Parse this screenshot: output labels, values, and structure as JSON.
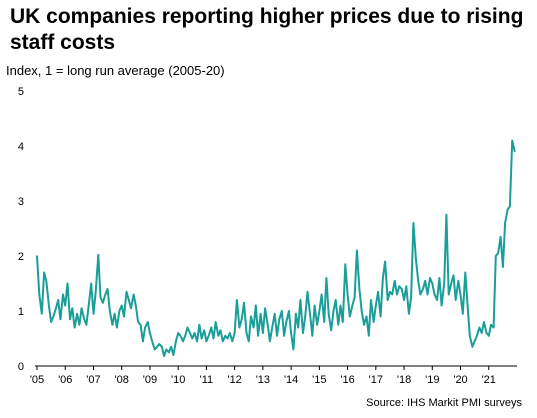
{
  "title": "UK companies reporting higher prices due to rising staff costs",
  "subtitle": "Index, 1 = long run average (2005-20)",
  "source": "Source: IHS Markit PMI surveys",
  "colors": {
    "line": "#1a9e9a",
    "axis": "#000000",
    "text": "#000000"
  },
  "chart_data": {
    "type": "line",
    "title": "UK companies reporting higher prices due to rising staff costs",
    "ylabel": "Index, 1 = long run average (2005-20)",
    "xlabel": "",
    "ylim": [
      0,
      5
    ],
    "yticks": [
      "0",
      "1",
      "2",
      "3",
      "4",
      "5"
    ],
    "xlim": [
      2005,
      2022
    ],
    "xticks": [
      {
        "x": 2005,
        "label": "'05"
      },
      {
        "x": 2006,
        "label": "'06"
      },
      {
        "x": 2007,
        "label": "'07"
      },
      {
        "x": 2008,
        "label": "'08"
      },
      {
        "x": 2009,
        "label": "'09"
      },
      {
        "x": 2010,
        "label": "'10"
      },
      {
        "x": 2011,
        "label": "'11"
      },
      {
        "x": 2012,
        "label": "'12"
      },
      {
        "x": 2013,
        "label": "'13"
      },
      {
        "x": 2014,
        "label": "'14"
      },
      {
        "x": 2015,
        "label": "'15"
      },
      {
        "x": 2016,
        "label": "'16"
      },
      {
        "x": 2017,
        "label": "'17"
      },
      {
        "x": 2018,
        "label": "'18"
      },
      {
        "x": 2019,
        "label": "'19"
      },
      {
        "x": 2020,
        "label": "'20"
      },
      {
        "x": 2021,
        "label": "'21"
      }
    ],
    "grid": false,
    "series": [
      {
        "name": "",
        "x": [
          2005.0,
          2005.08,
          2005.17,
          2005.25,
          2005.33,
          2005.42,
          2005.5,
          2005.58,
          2005.67,
          2005.75,
          2005.83,
          2005.92,
          2006.0,
          2006.08,
          2006.17,
          2006.25,
          2006.33,
          2006.42,
          2006.5,
          2006.58,
          2006.67,
          2006.75,
          2006.83,
          2006.92,
          2007.0,
          2007.08,
          2007.17,
          2007.25,
          2007.33,
          2007.42,
          2007.5,
          2007.58,
          2007.67,
          2007.75,
          2007.83,
          2007.92,
          2008.0,
          2008.08,
          2008.17,
          2008.25,
          2008.33,
          2008.42,
          2008.5,
          2008.58,
          2008.67,
          2008.75,
          2008.83,
          2008.92,
          2009.0,
          2009.08,
          2009.17,
          2009.25,
          2009.33,
          2009.42,
          2009.5,
          2009.58,
          2009.67,
          2009.75,
          2009.83,
          2009.92,
          2010.0,
          2010.08,
          2010.17,
          2010.25,
          2010.33,
          2010.42,
          2010.5,
          2010.58,
          2010.67,
          2010.75,
          2010.83,
          2010.92,
          2011.0,
          2011.08,
          2011.17,
          2011.25,
          2011.33,
          2011.42,
          2011.5,
          2011.58,
          2011.67,
          2011.75,
          2011.83,
          2011.92,
          2012.0,
          2012.08,
          2012.17,
          2012.25,
          2012.33,
          2012.42,
          2012.5,
          2012.58,
          2012.67,
          2012.75,
          2012.83,
          2012.92,
          2013.0,
          2013.08,
          2013.17,
          2013.25,
          2013.33,
          2013.42,
          2013.5,
          2013.58,
          2013.67,
          2013.75,
          2013.83,
          2013.92,
          2014.0,
          2014.08,
          2014.17,
          2014.25,
          2014.33,
          2014.42,
          2014.5,
          2014.58,
          2014.67,
          2014.75,
          2014.83,
          2014.92,
          2015.0,
          2015.08,
          2015.17,
          2015.25,
          2015.33,
          2015.42,
          2015.5,
          2015.58,
          2015.67,
          2015.75,
          2015.83,
          2015.92,
          2016.0,
          2016.08,
          2016.17,
          2016.25,
          2016.33,
          2016.42,
          2016.5,
          2016.58,
          2016.67,
          2016.75,
          2016.83,
          2016.92,
          2017.0,
          2017.08,
          2017.17,
          2017.25,
          2017.33,
          2017.42,
          2017.5,
          2017.58,
          2017.67,
          2017.75,
          2017.83,
          2017.92,
          2018.0,
          2018.08,
          2018.17,
          2018.25,
          2018.33,
          2018.42,
          2018.5,
          2018.58,
          2018.67,
          2018.75,
          2018.83,
          2018.92,
          2019.0,
          2019.08,
          2019.17,
          2019.25,
          2019.33,
          2019.42,
          2019.5,
          2019.58,
          2019.67,
          2019.75,
          2019.83,
          2019.92,
          2020.0,
          2020.08,
          2020.17,
          2020.25,
          2020.33,
          2020.42,
          2020.5,
          2020.58,
          2020.67,
          2020.75,
          2020.83,
          2020.92,
          2021.0,
          2021.08,
          2021.17,
          2021.25,
          2021.33,
          2021.42,
          2021.5,
          2021.58,
          2021.67,
          2021.75,
          2021.83,
          2021.92
        ],
        "values": [
          2.0,
          1.3,
          0.95,
          1.7,
          1.55,
          1.1,
          0.8,
          0.9,
          1.05,
          1.2,
          0.85,
          1.3,
          1.1,
          1.5,
          0.85,
          1.05,
          0.7,
          0.95,
          0.75,
          1.05,
          0.85,
          0.75,
          1.1,
          1.5,
          0.95,
          1.35,
          2.02,
          1.25,
          1.15,
          1.3,
          1.4,
          1.0,
          0.75,
          0.95,
          0.7,
          1.0,
          1.1,
          0.9,
          1.35,
          1.2,
          1.05,
          1.3,
          1.1,
          0.8,
          0.75,
          0.45,
          0.7,
          0.8,
          0.6,
          0.45,
          0.3,
          0.35,
          0.4,
          0.35,
          0.18,
          0.3,
          0.25,
          0.35,
          0.2,
          0.45,
          0.6,
          0.55,
          0.45,
          0.55,
          0.7,
          0.6,
          0.5,
          0.6,
          0.45,
          0.75,
          0.5,
          0.65,
          0.45,
          0.55,
          0.7,
          0.5,
          0.8,
          0.55,
          0.65,
          0.45,
          0.55,
          0.5,
          0.6,
          0.45,
          0.6,
          1.2,
          0.7,
          0.85,
          1.15,
          0.6,
          0.45,
          0.9,
          0.7,
          1.1,
          0.55,
          0.95,
          0.6,
          1.05,
          0.75,
          0.45,
          0.7,
          0.95,
          0.55,
          0.85,
          1.0,
          0.55,
          0.8,
          1.0,
          0.6,
          0.3,
          0.95,
          0.7,
          1.2,
          0.6,
          0.9,
          1.35,
          0.95,
          0.55,
          1.1,
          0.75,
          1.0,
          1.3,
          0.8,
          1.6,
          0.95,
          0.65,
          1.0,
          1.2,
          0.75,
          1.1,
          0.8,
          1.85,
          1.3,
          0.9,
          1.1,
          1.25,
          2.1,
          1.4,
          1.0,
          0.75,
          0.9,
          0.55,
          1.2,
          0.8,
          1.1,
          1.35,
          0.9,
          1.6,
          1.9,
          1.2,
          1.35,
          1.3,
          1.55,
          1.3,
          1.45,
          1.4,
          1.2,
          1.45,
          0.95,
          1.25,
          2.6,
          1.95,
          1.55,
          1.3,
          1.4,
          1.55,
          1.3,
          1.6,
          1.5,
          1.3,
          1.2,
          1.6,
          1.1,
          1.5,
          2.75,
          1.3,
          1.5,
          1.65,
          1.2,
          1.55,
          1.3,
          0.95,
          1.7,
          1.1,
          0.55,
          0.35,
          0.45,
          0.55,
          0.7,
          0.6,
          0.8,
          0.6,
          0.55,
          0.75,
          0.7,
          2.0,
          2.05,
          2.35,
          1.8,
          2.6,
          2.85,
          2.9,
          4.1,
          3.9
        ]
      }
    ]
  }
}
